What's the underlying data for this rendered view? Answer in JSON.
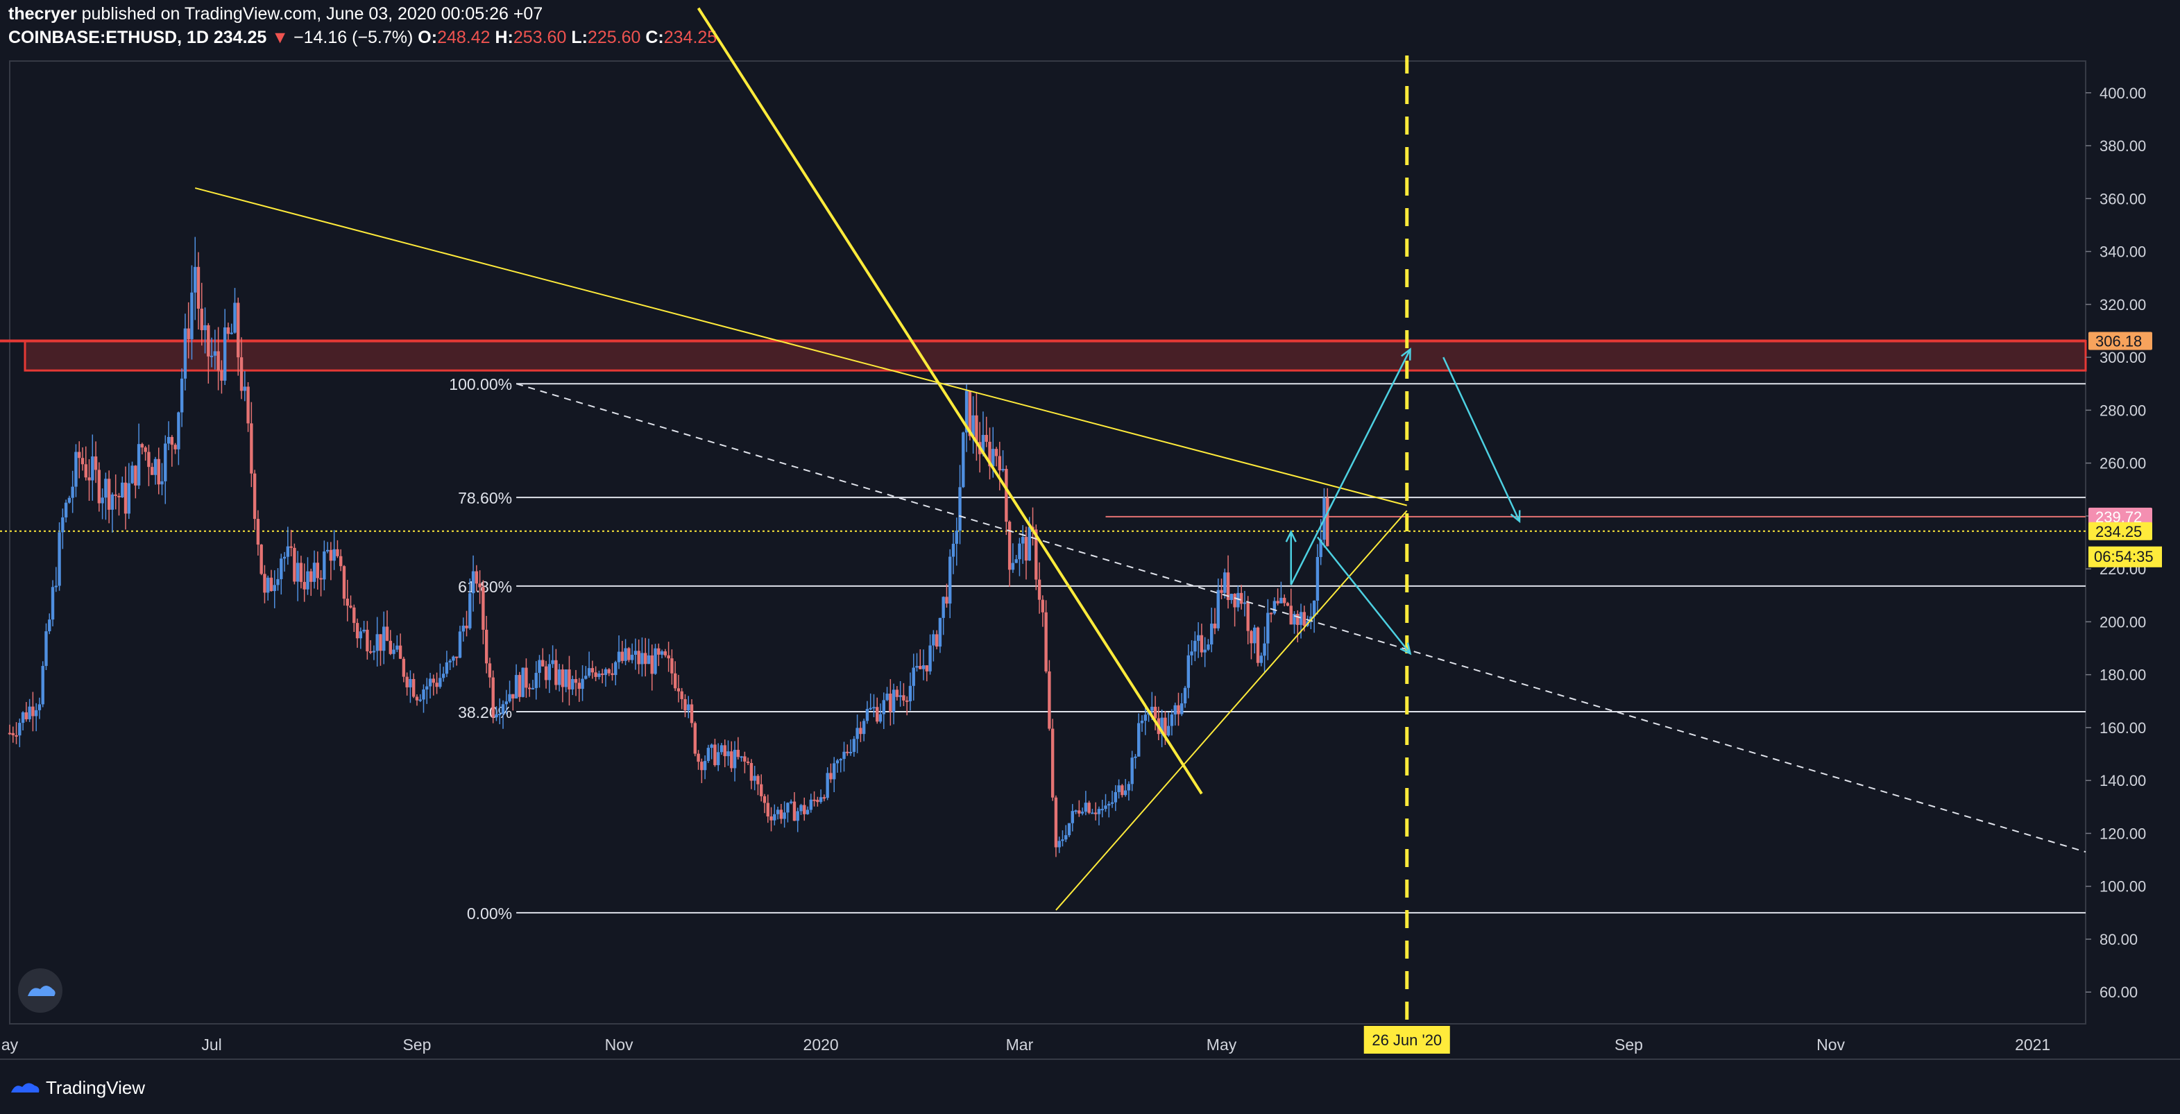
{
  "header": {
    "author": "thecryer",
    "published_text": " published on TradingView.com, June 03, 2020 00:05:26 +07",
    "symbol": "COINBASE:ETHUSD, 1D",
    "last_price": "234.25",
    "change_arrow": "▼",
    "change": "−14.16 (−5.7%)",
    "o_label": "O:",
    "o_value": "248.42",
    "h_label": "H:",
    "h_value": "253.60",
    "l_label": "L:",
    "l_value": "225.60",
    "c_label": "C:",
    "c_value": "234.25"
  },
  "footer": {
    "brand": "TradingView"
  },
  "colors": {
    "background": "#131722",
    "up_candle": "#4f8fe0",
    "down_candle": "#e57373",
    "trendline": "#ffeb3b",
    "arrows": "#4dd0e1",
    "resistance_zone": "#e53935",
    "price_label": "#f48fb1"
  },
  "chart_data": {
    "type": "candlestick",
    "symbol": "COINBASE:ETHUSD",
    "interval": "1D",
    "y_axis": {
      "ticks": [
        "60.00",
        "80.00",
        "100.00",
        "120.00",
        "140.00",
        "160.00",
        "180.00",
        "200.00",
        "220.00",
        "240.00",
        "260.00",
        "280.00",
        "300.00",
        "320.00",
        "340.00",
        "360.00",
        "380.00",
        "400.00"
      ],
      "range": [
        48,
        412
      ]
    },
    "x_axis": {
      "ticks": [
        {
          "label": "ay",
          "date": "2019-05-01"
        },
        {
          "label": "Jul",
          "date": "2019-07-01"
        },
        {
          "label": "Sep",
          "date": "2019-09-01"
        },
        {
          "label": "Nov",
          "date": "2019-11-01"
        },
        {
          "label": "2020",
          "date": "2020-01-01"
        },
        {
          "label": "Mar",
          "date": "2020-03-01"
        },
        {
          "label": "May",
          "date": "2020-05-01"
        },
        {
          "label": "Sep",
          "date": "2020-09-01"
        },
        {
          "label": "Nov",
          "date": "2020-11-01"
        },
        {
          "label": "2021",
          "date": "2021-01-01"
        }
      ],
      "range": [
        "2019-05-01",
        "2021-01-17"
      ]
    },
    "price_points": [
      [
        "2019-05-01",
        158
      ],
      [
        "2019-05-10",
        172
      ],
      [
        "2019-05-17",
        238
      ],
      [
        "2019-05-22",
        262
      ],
      [
        "2019-05-28",
        252
      ],
      [
        "2019-06-05",
        246
      ],
      [
        "2019-06-10",
        266
      ],
      [
        "2019-06-15",
        258
      ],
      [
        "2019-06-20",
        272
      ],
      [
        "2019-06-26",
        335
      ],
      [
        "2019-06-28",
        305
      ],
      [
        "2019-07-03",
        296
      ],
      [
        "2019-07-08",
        312
      ],
      [
        "2019-07-11",
        282
      ],
      [
        "2019-07-17",
        208
      ],
      [
        "2019-07-22",
        226
      ],
      [
        "2019-07-31",
        214
      ],
      [
        "2019-08-06",
        228
      ],
      [
        "2019-08-14",
        196
      ],
      [
        "2019-08-23",
        192
      ],
      [
        "2019-09-01",
        174
      ],
      [
        "2019-09-07",
        178
      ],
      [
        "2019-09-12",
        184
      ],
      [
        "2019-09-19",
        218
      ],
      [
        "2019-09-24",
        168
      ],
      [
        "2019-10-01",
        176
      ],
      [
        "2019-10-10",
        182
      ],
      [
        "2019-10-20",
        174
      ],
      [
        "2019-10-25",
        183
      ],
      [
        "2019-11-05",
        186
      ],
      [
        "2019-11-15",
        184
      ],
      [
        "2019-11-20",
        176
      ],
      [
        "2019-11-25",
        148
      ],
      [
        "2019-12-01",
        150
      ],
      [
        "2019-12-10",
        146
      ],
      [
        "2019-12-16",
        128
      ],
      [
        "2019-12-20",
        128
      ],
      [
        "2019-12-28",
        129
      ],
      [
        "2020-01-06",
        144
      ],
      [
        "2020-01-14",
        165
      ],
      [
        "2020-01-20",
        168
      ],
      [
        "2020-01-28",
        176
      ],
      [
        "2020-02-04",
        190
      ],
      [
        "2020-02-10",
        224
      ],
      [
        "2020-02-14",
        280
      ],
      [
        "2020-02-19",
        264
      ],
      [
        "2020-02-24",
        265
      ],
      [
        "2020-02-27",
        225
      ],
      [
        "2020-03-05",
        230
      ],
      [
        "2020-03-08",
        202
      ],
      [
        "2020-03-12",
        112
      ],
      [
        "2020-03-15",
        122
      ],
      [
        "2020-03-20",
        132
      ],
      [
        "2020-03-27",
        128
      ],
      [
        "2020-04-03",
        142
      ],
      [
        "2020-04-08",
        168
      ],
      [
        "2020-04-15",
        158
      ],
      [
        "2020-04-22",
        186
      ],
      [
        "2020-04-28",
        198
      ],
      [
        "2020-05-01",
        214
      ],
      [
        "2020-05-07",
        210
      ],
      [
        "2020-05-12",
        188
      ],
      [
        "2020-05-17",
        204
      ],
      [
        "2020-05-23",
        202
      ],
      [
        "2020-05-28",
        200
      ],
      [
        "2020-06-01",
        244
      ],
      [
        "2020-06-02",
        234
      ]
    ],
    "last_close": 234.25,
    "fibonacci": [
      {
        "label": "100.00%",
        "price": 290
      },
      {
        "label": "78.60%",
        "price": 247
      },
      {
        "label": "61.80%",
        "price": 213.5
      },
      {
        "label": "38.20%",
        "price": 166
      },
      {
        "label": "0.00%",
        "price": 90
      }
    ],
    "resistance_zone": {
      "price_top": 306.18,
      "price_bottom": 295
    },
    "price_labels": [
      {
        "text": "306.18",
        "price": 306.18
      },
      {
        "text": "239.72",
        "price": 239.72
      },
      {
        "text": "234.25",
        "price": 234.25
      }
    ],
    "countdown": "06:54:35",
    "vertical_marker": {
      "label": "26 Jun '20",
      "date": "2020-06-26"
    },
    "trendlines": [
      {
        "from": [
          "2019-06-26",
          364
        ],
        "to": [
          "2020-06-26",
          244
        ]
      },
      {
        "from": [
          "2019-10-01",
          290
        ],
        "to": [
          "2021-01-17",
          113
        ]
      },
      {
        "from": [
          "2019-11-25",
          432
        ],
        "to": [
          "2020-04-25",
          135
        ]
      },
      {
        "from": [
          "2020-03-12",
          91
        ],
        "to": [
          "2020-06-26",
          242
        ]
      }
    ],
    "projection_arrows": [
      {
        "from": [
          "2020-05-22",
          214
        ],
        "to": [
          "2020-05-22",
          234
        ]
      },
      {
        "from": [
          "2020-05-22",
          214
        ],
        "to": [
          "2020-06-27",
          303
        ]
      },
      {
        "from": [
          "2020-07-07",
          300
        ],
        "to": [
          "2020-07-30",
          238
        ]
      },
      {
        "from": [
          "2020-05-30",
          232
        ],
        "to": [
          "2020-06-27",
          188
        ]
      }
    ]
  }
}
